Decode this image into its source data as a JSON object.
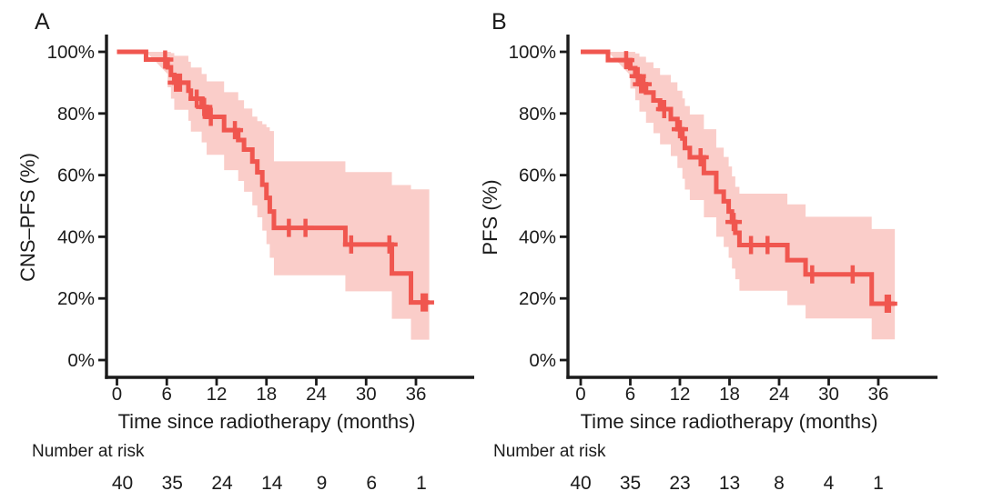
{
  "figure": {
    "background": "#ffffff",
    "line_color": "#f0564f",
    "band_color": "#facdc9",
    "axis_color": "#1b1b1b",
    "text_color": "#1b1b1b"
  },
  "chart_data": [
    {
      "type": "line",
      "subtype": "kaplan-meier-step-with-confidence-band",
      "panel_label": "A",
      "xlabel": "Time since radiotherapy (months)",
      "ylabel": "CNS–PFS (%)",
      "xlim": [
        0,
        38
      ],
      "ylim": [
        0,
        100
      ],
      "grid": "off",
      "legend": "none",
      "x_ticks": [
        0,
        6,
        12,
        18,
        24,
        30,
        36
      ],
      "y_ticks": [
        {
          "value": 0,
          "label": "0%"
        },
        {
          "value": 20,
          "label": "20%"
        },
        {
          "value": 40,
          "label": "40%"
        },
        {
          "value": 60,
          "label": "60%"
        },
        {
          "value": 80,
          "label": "80%"
        },
        {
          "value": 100,
          "label": "100%"
        }
      ],
      "survival_steps": [
        [
          0,
          100
        ],
        [
          3.5,
          97.5
        ],
        [
          6.1,
          95
        ],
        [
          6.5,
          92.5
        ],
        [
          6.9,
          90
        ],
        [
          8.6,
          87.4
        ],
        [
          8.9,
          84.8
        ],
        [
          10.2,
          82.1
        ],
        [
          10.8,
          78.9
        ],
        [
          12.9,
          74.6
        ],
        [
          14.6,
          71.4
        ],
        [
          15.3,
          68.3
        ],
        [
          16.3,
          64.4
        ],
        [
          16.9,
          60.9
        ],
        [
          17.5,
          56.9
        ],
        [
          18,
          52.6
        ],
        [
          18.4,
          48.2
        ],
        [
          18.9,
          42.9
        ],
        [
          27.5,
          37.5
        ],
        [
          33.1,
          28.1
        ],
        [
          35.4,
          18.7
        ]
      ],
      "ci_steps": [
        [
          3.5,
          92.8,
          100
        ],
        [
          6.1,
          88.5,
          100
        ],
        [
          6.5,
          84.8,
          99.6
        ],
        [
          6.9,
          81.2,
          98.7
        ],
        [
          8.6,
          77.6,
          96.8
        ],
        [
          8.9,
          74.1,
          94.9
        ],
        [
          10.2,
          70.6,
          92.8
        ],
        [
          10.8,
          66.6,
          90.4
        ],
        [
          12.9,
          61.6,
          86.9
        ],
        [
          14.6,
          58.1,
          84.3
        ],
        [
          15.3,
          54.6,
          81.6
        ],
        [
          16.3,
          50.2,
          79
        ],
        [
          16.9,
          46.3,
          77.5
        ],
        [
          17.5,
          42,
          76.5
        ],
        [
          18,
          37.6,
          75.5
        ],
        [
          18.4,
          33.2,
          74.3
        ],
        [
          18.9,
          27.5,
          64.5
        ],
        [
          27.5,
          22.3,
          61
        ],
        [
          33.1,
          13.4,
          56.8
        ],
        [
          35.4,
          6.6,
          55.4
        ]
      ],
      "censor_marks": [
        [
          5.8,
          97.5
        ],
        [
          7.1,
          90
        ],
        [
          7.35,
          90
        ],
        [
          7.6,
          90
        ],
        [
          9.6,
          84.8
        ],
        [
          10.5,
          82.1
        ],
        [
          11.3,
          78.9
        ],
        [
          14.2,
          74.6
        ],
        [
          20.7,
          42.9
        ],
        [
          22.7,
          42.9
        ],
        [
          28.2,
          37.5
        ],
        [
          32.8,
          37.5
        ],
        [
          36.8,
          18.7
        ],
        [
          37.2,
          18.7
        ]
      ],
      "end_time": 37.6,
      "number_at_risk": {
        "label": "Number at risk",
        "times": [
          0,
          6,
          12,
          18,
          24,
          30,
          36
        ],
        "values": [
          "40",
          "35",
          "24",
          "14",
          "9",
          "6",
          "1"
        ]
      }
    },
    {
      "type": "line",
      "subtype": "kaplan-meier-step-with-confidence-band",
      "panel_label": "B",
      "xlabel": "Time since radiotherapy (months)",
      "ylabel": "PFS (%)",
      "xlim": [
        0,
        38
      ],
      "ylim": [
        0,
        100
      ],
      "grid": "off",
      "legend": "none",
      "x_ticks": [
        0,
        6,
        12,
        18,
        24,
        30,
        36
      ],
      "y_ticks": [
        {
          "value": 0,
          "label": "0%"
        },
        {
          "value": 20,
          "label": "20%"
        },
        {
          "value": 40,
          "label": "40%"
        },
        {
          "value": 60,
          "label": "60%"
        },
        {
          "value": 80,
          "label": "80%"
        },
        {
          "value": 100,
          "label": "100%"
        }
      ],
      "survival_steps": [
        [
          0,
          100
        ],
        [
          3.3,
          97.3
        ],
        [
          6,
          94.7
        ],
        [
          6.6,
          92.1
        ],
        [
          7.1,
          89.5
        ],
        [
          7.9,
          86.8
        ],
        [
          8.8,
          84.2
        ],
        [
          9.6,
          81.4
        ],
        [
          10.9,
          78.2
        ],
        [
          11.7,
          74.9
        ],
        [
          12.3,
          71.9
        ],
        [
          12.6,
          68.8
        ],
        [
          13.2,
          65.8
        ],
        [
          14.9,
          60.7
        ],
        [
          16.4,
          54.6
        ],
        [
          17.3,
          51.5
        ],
        [
          17.9,
          48.2
        ],
        [
          18.3,
          44.8
        ],
        [
          18.7,
          41.3
        ],
        [
          19.2,
          37.3
        ],
        [
          25,
          32.4
        ],
        [
          27.2,
          27.8
        ],
        [
          35.2,
          18.3
        ]
      ],
      "ci_steps": [
        [
          3.3,
          92.4,
          100
        ],
        [
          6,
          88.1,
          100
        ],
        [
          6.6,
          84.3,
          99.5
        ],
        [
          7.1,
          80.6,
          98.4
        ],
        [
          7.9,
          77,
          96.6
        ],
        [
          8.8,
          73.6,
          94.7
        ],
        [
          9.6,
          70,
          92.5
        ],
        [
          10.9,
          66.2,
          90.1
        ],
        [
          11.7,
          62.3,
          87.4
        ],
        [
          12.3,
          58.8,
          84.9
        ],
        [
          12.6,
          55.3,
          82.4
        ],
        [
          13.2,
          51.9,
          79.7
        ],
        [
          14.9,
          46.3,
          74.9
        ],
        [
          16.4,
          40,
          68.9
        ],
        [
          17.3,
          36.7,
          65.9
        ],
        [
          17.9,
          33.2,
          62.8
        ],
        [
          18.3,
          29.7,
          59.6
        ],
        [
          18.7,
          26.2,
          56.2
        ],
        [
          19.2,
          22.5,
          54
        ],
        [
          25,
          17.8,
          50.5
        ],
        [
          27.2,
          13.5,
          46.5
        ],
        [
          35.2,
          6.7,
          42.5
        ]
      ],
      "censor_marks": [
        [
          5.5,
          97.3
        ],
        [
          6.9,
          92.1
        ],
        [
          7.3,
          89.5
        ],
        [
          7.6,
          89.5
        ],
        [
          10.1,
          81.4
        ],
        [
          12,
          74.9
        ],
        [
          14.5,
          65.8
        ],
        [
          18.5,
          44.8
        ],
        [
          20.6,
          37.3
        ],
        [
          22.6,
          37.3
        ],
        [
          28,
          27.8
        ],
        [
          32.9,
          27.8
        ],
        [
          37,
          18.3
        ],
        [
          37.3,
          18.3
        ]
      ],
      "end_time": 38,
      "number_at_risk": {
        "label": "Number at risk",
        "times": [
          0,
          6,
          12,
          18,
          24,
          30,
          36
        ],
        "values": [
          "40",
          "35",
          "23",
          "13",
          "8",
          "4",
          "1"
        ]
      }
    }
  ]
}
